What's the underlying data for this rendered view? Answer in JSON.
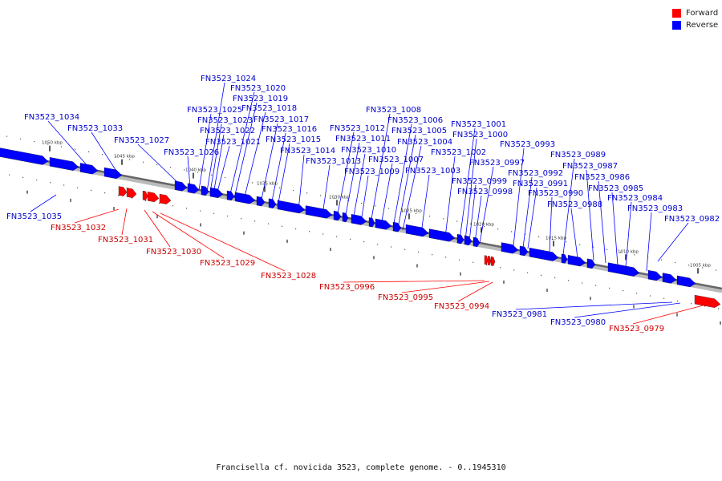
{
  "legend": {
    "forward_label": "Forward",
    "reverse_label": "Reverse",
    "forward_color": "#ff0000",
    "reverse_color": "#0000ff"
  },
  "caption": "Francisella cf. novicida 3523, complete genome. - 0..1945310",
  "colors": {
    "forward": "#ff0000",
    "forward_text": "#cc0000",
    "reverse": "#0000ff",
    "reverse_text": "#0000cc",
    "backbone": "#666666"
  },
  "kbp_markers": [
    "1050 kbp",
    "1045 kbp",
    "1040 kbp",
    "1035 kbp",
    "1030 kbp",
    "1025 kbp",
    "1020 kbp",
    "1015 kbp",
    "1010 kbp",
    "1005 kbp"
  ],
  "genes": [
    {
      "name": "FN3523_1034",
      "strand": "reverse"
    },
    {
      "name": "FN3523_1033",
      "strand": "reverse"
    },
    {
      "name": "FN3523_1027",
      "strand": "reverse"
    },
    {
      "name": "FN3523_1026",
      "strand": "reverse"
    },
    {
      "name": "FN3523_1025",
      "strand": "reverse"
    },
    {
      "name": "FN3523_1024",
      "strand": "reverse"
    },
    {
      "name": "FN3523_1023",
      "strand": "reverse"
    },
    {
      "name": "FN3523_1022",
      "strand": "reverse"
    },
    {
      "name": "FN3523_1021",
      "strand": "reverse"
    },
    {
      "name": "FN3523_1020",
      "strand": "reverse"
    },
    {
      "name": "FN3523_1019",
      "strand": "reverse"
    },
    {
      "name": "FN3523_1018",
      "strand": "reverse"
    },
    {
      "name": "FN3523_1017",
      "strand": "reverse"
    },
    {
      "name": "FN3523_1016",
      "strand": "reverse"
    },
    {
      "name": "FN3523_1015",
      "strand": "reverse"
    },
    {
      "name": "FN3523_1014",
      "strand": "reverse"
    },
    {
      "name": "FN3523_1013",
      "strand": "reverse"
    },
    {
      "name": "FN3523_1012",
      "strand": "reverse"
    },
    {
      "name": "FN3523_1011",
      "strand": "reverse"
    },
    {
      "name": "FN3523_1010",
      "strand": "reverse"
    },
    {
      "name": "FN3523_1009",
      "strand": "reverse"
    },
    {
      "name": "FN3523_1008",
      "strand": "reverse"
    },
    {
      "name": "FN3523_1007",
      "strand": "reverse"
    },
    {
      "name": "FN3523_1006",
      "strand": "reverse"
    },
    {
      "name": "FN3523_1005",
      "strand": "reverse"
    },
    {
      "name": "FN3523_1004",
      "strand": "reverse"
    },
    {
      "name": "FN3523_1003",
      "strand": "reverse"
    },
    {
      "name": "FN3523_1002",
      "strand": "reverse"
    },
    {
      "name": "FN3523_1001",
      "strand": "reverse"
    },
    {
      "name": "FN3523_1000",
      "strand": "reverse"
    },
    {
      "name": "FN3523_0999",
      "strand": "reverse"
    },
    {
      "name": "FN3523_0998",
      "strand": "reverse"
    },
    {
      "name": "FN3523_0997",
      "strand": "reverse"
    },
    {
      "name": "FN3523_0993",
      "strand": "reverse"
    },
    {
      "name": "FN3523_0992",
      "strand": "reverse"
    },
    {
      "name": "FN3523_0991",
      "strand": "reverse"
    },
    {
      "name": "FN3523_0990",
      "strand": "reverse"
    },
    {
      "name": "FN3523_0989",
      "strand": "reverse"
    },
    {
      "name": "FN3523_0988",
      "strand": "reverse"
    },
    {
      "name": "FN3523_0987",
      "strand": "reverse"
    },
    {
      "name": "FN3523_0986",
      "strand": "reverse"
    },
    {
      "name": "FN3523_0985",
      "strand": "reverse"
    },
    {
      "name": "FN3523_0984",
      "strand": "reverse"
    },
    {
      "name": "FN3523_0983",
      "strand": "reverse"
    },
    {
      "name": "FN3523_0982",
      "strand": "reverse"
    },
    {
      "name": "FN3523_1035",
      "strand": "reverse"
    },
    {
      "name": "FN3523_0981",
      "strand": "reverse"
    },
    {
      "name": "FN3523_0980",
      "strand": "reverse"
    },
    {
      "name": "FN3523_1032",
      "strand": "forward"
    },
    {
      "name": "FN3523_1031",
      "strand": "forward"
    },
    {
      "name": "FN3523_1030",
      "strand": "forward"
    },
    {
      "name": "FN3523_1029",
      "strand": "forward"
    },
    {
      "name": "FN3523_1028",
      "strand": "forward"
    },
    {
      "name": "FN3523_0996",
      "strand": "forward"
    },
    {
      "name": "FN3523_0995",
      "strand": "forward"
    },
    {
      "name": "FN3523_0994",
      "strand": "forward"
    },
    {
      "name": "FN3523_0979",
      "strand": "forward"
    }
  ]
}
